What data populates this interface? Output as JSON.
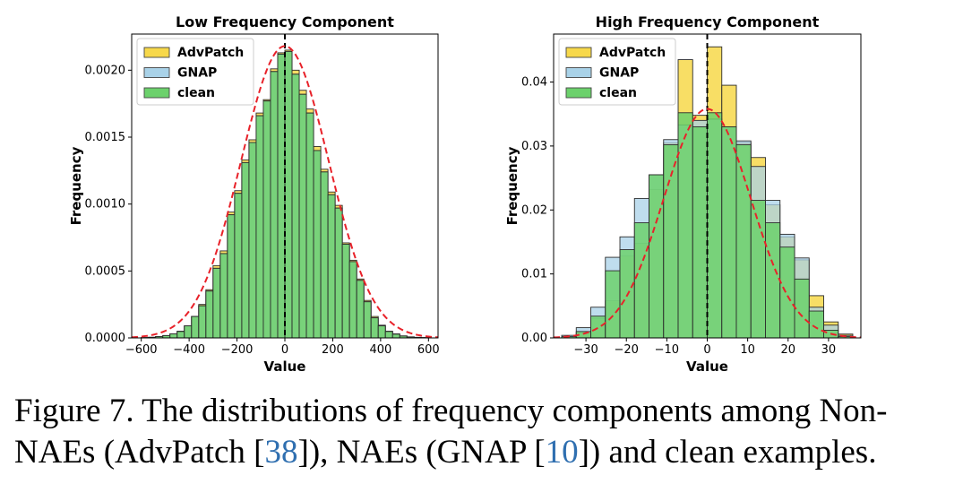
{
  "chart_data": [
    {
      "type": "histogram",
      "title": "Low Frequency Component",
      "xlabel": "Value",
      "ylabel": "Frequency",
      "xlim": [
        -640,
        640
      ],
      "ylim": [
        0,
        0.00227
      ],
      "xticks": [
        -600,
        -400,
        -200,
        0,
        200,
        400,
        600
      ],
      "xtick_labels": [
        "−600",
        "−400",
        "−200",
        "0",
        "200",
        "400",
        "600"
      ],
      "yticks": [
        0,
        0.0005,
        0.001,
        0.0015,
        0.002
      ],
      "ytick_labels": [
        "0.0000",
        "0.0005",
        "0.0010",
        "0.0015",
        "0.0020"
      ],
      "legend_position": "upper-left",
      "vline_x": 0,
      "bin_edges": [
        -600,
        -570,
        -540,
        -510,
        -480,
        -450,
        -420,
        -390,
        -360,
        -330,
        -300,
        -270,
        -240,
        -210,
        -180,
        -150,
        -120,
        -90,
        -60,
        -30,
        0,
        30,
        60,
        90,
        120,
        150,
        180,
        210,
        240,
        270,
        300,
        330,
        360,
        390,
        420,
        450,
        480,
        510,
        540,
        570,
        600
      ],
      "series": [
        {
          "name": "AdvPatch",
          "color": "#f7d84a",
          "values": [
            2e-06,
            5e-06,
            1e-05,
            1.8e-05,
            3e-05,
            5e-05,
            9e-05,
            0.00016,
            0.00025,
            0.00036,
            0.00054,
            0.00065,
            0.00094,
            0.0011,
            0.00133,
            0.00148,
            0.00168,
            0.00178,
            0.00201,
            0.00213,
            0.00215,
            0.002,
            0.00185,
            0.00171,
            0.00143,
            0.00126,
            0.00109,
            0.00099,
            0.00071,
            0.00058,
            0.00044,
            0.00028,
            0.00016,
            9.5e-05,
            5e-05,
            3e-05,
            1.5e-05,
            8e-06,
            4e-06,
            2e-06
          ]
        },
        {
          "name": "GNAP",
          "color": "#a9d2e8",
          "values": [
            2e-06,
            4e-06,
            1e-05,
            1.7e-05,
            3e-05,
            4.8e-05,
            9e-05,
            0.00016,
            0.00024,
            0.00035,
            0.00052,
            0.00063,
            0.00092,
            0.00108,
            0.00131,
            0.00146,
            0.00166,
            0.00177,
            0.00199,
            0.00212,
            0.00214,
            0.00197,
            0.00182,
            0.00168,
            0.0014,
            0.00124,
            0.00107,
            0.00097,
            0.0007,
            0.00057,
            0.00043,
            0.00027,
            0.00015,
            9e-05,
            4.8e-05,
            2.8e-05,
            1.4e-05,
            7e-06,
            4e-06,
            2e-06
          ]
        },
        {
          "name": "clean",
          "color": "#6cd16c",
          "values": [
            2e-06,
            4e-06,
            1e-05,
            1.7e-05,
            3e-05,
            4.8e-05,
            9e-05,
            0.00016,
            0.00024,
            0.00035,
            0.00052,
            0.00063,
            0.00092,
            0.00108,
            0.00131,
            0.00146,
            0.00166,
            0.00177,
            0.00199,
            0.00212,
            0.00214,
            0.00197,
            0.00182,
            0.00168,
            0.0014,
            0.00124,
            0.00107,
            0.00097,
            0.0007,
            0.00057,
            0.00043,
            0.00027,
            0.00015,
            9e-05,
            4.8e-05,
            2.8e-05,
            1.4e-05,
            7e-06,
            4e-06,
            2e-06
          ]
        }
      ],
      "fit_curve": {
        "type": "normal",
        "mean": 0,
        "std": 183,
        "scale": 0.00218,
        "color": "#e8222a"
      }
    },
    {
      "type": "histogram",
      "title": "High Frequency Component",
      "xlabel": "Value",
      "ylabel": "Frequency",
      "xlim": [
        -38,
        38
      ],
      "ylim": [
        0,
        0.0475
      ],
      "xticks": [
        -30,
        -20,
        -10,
        0,
        10,
        20,
        30
      ],
      "xtick_labels": [
        "−30",
        "−20",
        "−10",
        "0",
        "10",
        "20",
        "30"
      ],
      "yticks": [
        0,
        0.01,
        0.02,
        0.03,
        0.04
      ],
      "ytick_labels": [
        "0.00",
        "0.01",
        "0.02",
        "0.03",
        "0.04"
      ],
      "legend_position": "upper-left",
      "vline_x": 0,
      "bin_edges": [
        -36,
        -32.4,
        -28.8,
        -25.2,
        -21.6,
        -18,
        -14.4,
        -10.8,
        -7.2,
        -3.6,
        0,
        3.6,
        7.2,
        10.8,
        14.4,
        18,
        21.6,
        25.2,
        28.8,
        32.4,
        36
      ],
      "series": [
        {
          "name": "AdvPatch",
          "color": "#f7d84a",
          "values": [
            0.0001,
            0.0008,
            0.003,
            0.0058,
            0.0128,
            0.0148,
            0.0232,
            0.0305,
            0.0435,
            0.0348,
            0.0455,
            0.0395,
            0.0305,
            0.0282,
            0.0208,
            0.0158,
            0.0122,
            0.0066,
            0.0025,
            0.0006
          ]
        },
        {
          "name": "GNAP",
          "color": "#a9d2e8",
          "values": [
            0.0004,
            0.0016,
            0.0048,
            0.0126,
            0.0158,
            0.0218,
            0.0255,
            0.031,
            0.0333,
            0.034,
            0.0342,
            0.033,
            0.0308,
            0.0268,
            0.0215,
            0.0162,
            0.0125,
            0.0048,
            0.002,
            0.0004
          ]
        },
        {
          "name": "clean",
          "color": "#6cd16c",
          "values": [
            0.0002,
            0.001,
            0.0034,
            0.0105,
            0.0138,
            0.018,
            0.0255,
            0.0302,
            0.0352,
            0.033,
            0.0352,
            0.033,
            0.0302,
            0.0215,
            0.018,
            0.0142,
            0.0092,
            0.0042,
            0.0012,
            0.0002
          ]
        }
      ],
      "fit_curve": {
        "type": "normal",
        "mean": 0,
        "std": 10.8,
        "scale": 0.0358,
        "color": "#e8222a"
      }
    }
  ],
  "caption": {
    "part1": "Figure 7. The distributions of frequency components among Non-",
    "part2": "NAEs (AdvPatch [",
    "ref1": "38",
    "part3": "]), NAEs (GNAP [",
    "ref2": "10",
    "part4": "]) and clean examples."
  }
}
